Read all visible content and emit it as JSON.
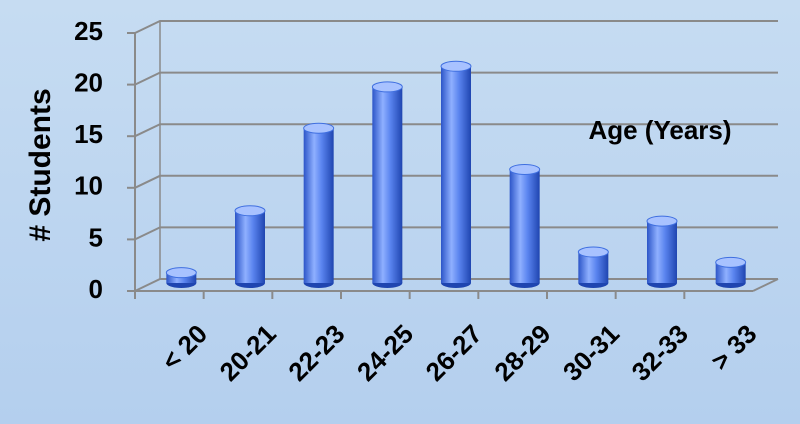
{
  "chart_data": {
    "type": "bar",
    "style": "3d-cylinder",
    "y_label": "# Students",
    "annotation": "Age (Years)",
    "categories": [
      "< 20",
      "20-21",
      "22-23",
      "24-25",
      "26-27",
      "28-29",
      "30-31",
      "32-33",
      "> 33"
    ],
    "values": [
      1,
      7,
      15,
      19,
      21,
      11,
      3,
      6,
      2
    ],
    "color": "#3f6fe0",
    "ylim": [
      0,
      25
    ],
    "yticks": [
      0,
      5,
      10,
      15,
      20,
      25
    ],
    "grid": true
  }
}
